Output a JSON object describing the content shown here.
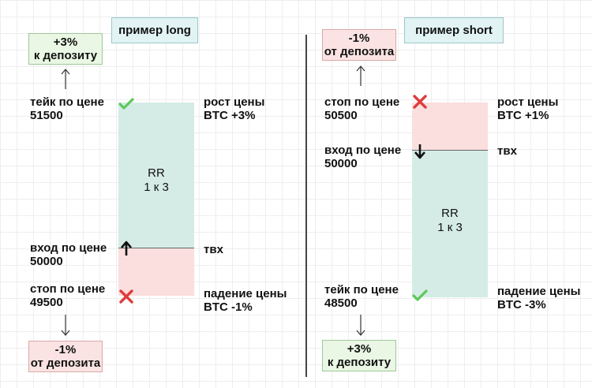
{
  "long": {
    "title": "пример long",
    "profit_box": "+3%\nк депозиту",
    "loss_box": "-1%\nот депозита",
    "take_label": "тейк по цене\n51500",
    "entry_label": "вход по цене\n50000",
    "stop_label": "стоп по цене\n49500",
    "rise_label": "рост цены\nBTC +3%",
    "tvh_label": "твх",
    "fall_label": "падение цены\nBTC -1%",
    "rr_label": "RR\n1 к 3"
  },
  "short": {
    "title": "пример short",
    "loss_box": "-1%\nот депозита",
    "profit_box": "+3%\nк депозиту",
    "stop_label": "стоп по цене\n50500",
    "entry_label": "вход по цене\n50000",
    "take_label": "тейк по цене\n48500",
    "rise_label": "рост цены\nBTC +1%",
    "tvh_label": "твх",
    "fall_label": "падение цены\nBTC -3%",
    "rr_label": "RR\n1 к 3"
  },
  "colors": {
    "profit_zone": "#d5ece6",
    "loss_zone": "#fbdede",
    "check": "#5cc85a",
    "cross": "#e03c3c"
  },
  "icons": [
    "check-icon",
    "cross-icon",
    "arrow-up-icon",
    "arrow-down-icon"
  ]
}
